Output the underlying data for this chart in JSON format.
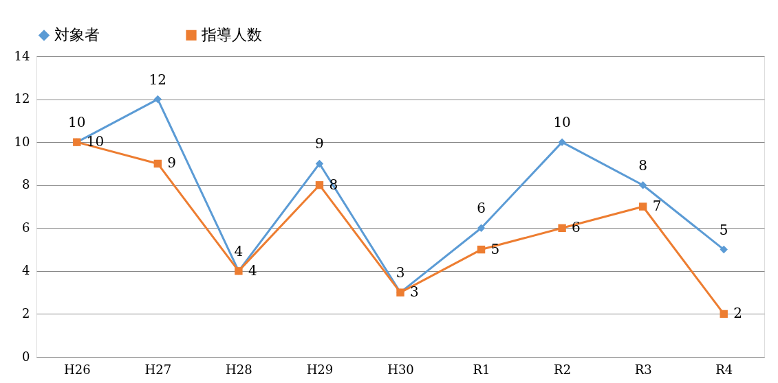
{
  "chart_data": {
    "type": "line",
    "categories": [
      "H26",
      "H27",
      "H28",
      "H29",
      "H30",
      "R1",
      "R2",
      "R3",
      "R4"
    ],
    "series": [
      {
        "name": "対象者",
        "color": "#5b9bd5",
        "marker": "diamond",
        "values": [
          10,
          12,
          4,
          9,
          3,
          6,
          10,
          8,
          5
        ]
      },
      {
        "name": "指導人数",
        "color": "#ed7d31",
        "marker": "square",
        "values": [
          10,
          9,
          4,
          8,
          3,
          5,
          6,
          7,
          2
        ]
      }
    ],
    "ylim": [
      0,
      14
    ],
    "yticks": [
      0,
      2,
      4,
      6,
      8,
      10,
      12,
      14
    ],
    "grid": "y",
    "legend": "top",
    "data_labels": true
  }
}
